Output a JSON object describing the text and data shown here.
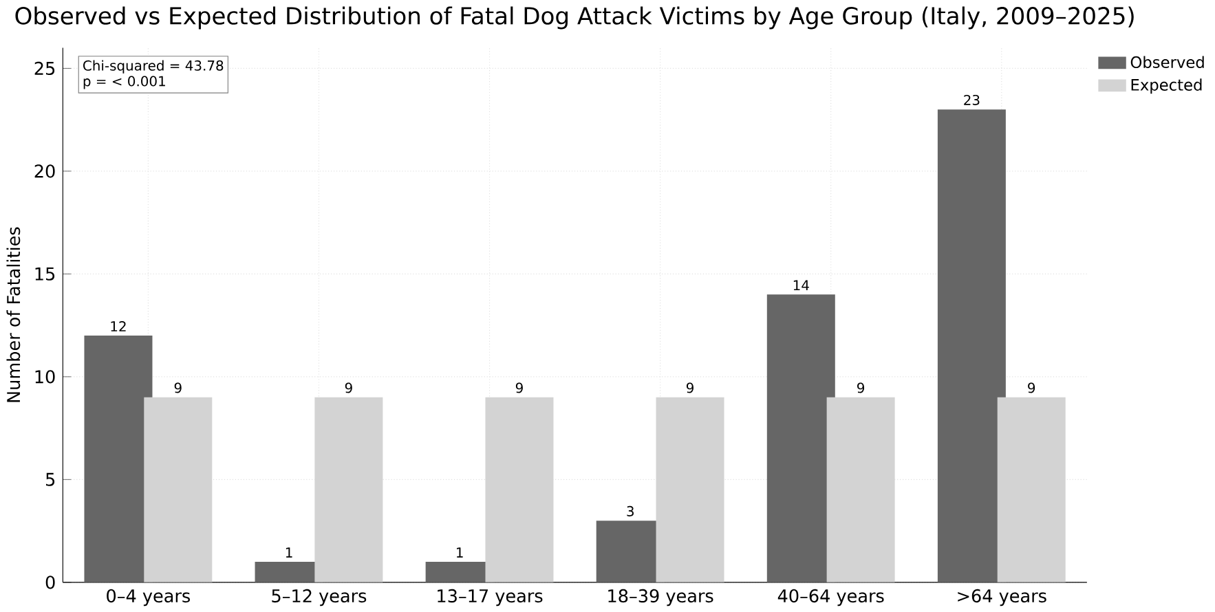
{
  "chart_data": {
    "type": "bar",
    "title": "Observed vs Expected Distribution of Fatal Dog Attack Victims by Age Group (Italy, 2009–2025)",
    "ylabel": "Number of Fatalities",
    "categories": [
      "0–4 years",
      "5–12 years",
      "13–17 years",
      "18–39 years",
      "40–64 years",
      ">64 years"
    ],
    "series": [
      {
        "name": "Observed",
        "color": "#666666",
        "values": [
          12,
          1,
          1,
          3,
          14,
          23
        ]
      },
      {
        "name": "Expected",
        "color": "#d3d3d3",
        "values": [
          9,
          9,
          9,
          9,
          9,
          9
        ]
      }
    ],
    "ylim": [
      0,
      26
    ],
    "yticks": [
      0,
      5,
      10,
      15,
      20,
      25
    ],
    "annotations": [
      "Chi-squared = 43.78",
      "p = < 0.001"
    ],
    "data_labels": true,
    "grid": true,
    "legend": "top right"
  }
}
